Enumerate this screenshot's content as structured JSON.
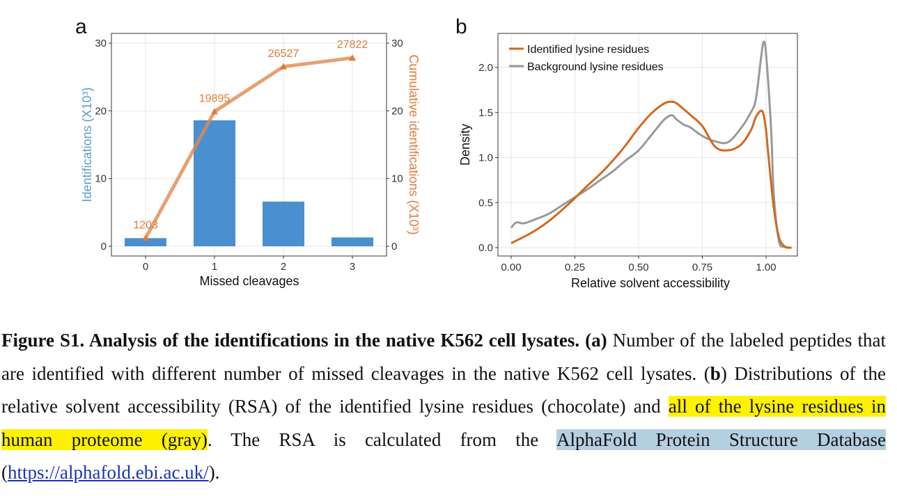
{
  "colors": {
    "bar": "#4a8fd0",
    "cumulative": "#e08a4c",
    "identified": "#d2691e",
    "background": "#999999",
    "left_axis_title": "#5b9bd5",
    "right_axis_title": "#e07b39"
  },
  "chart_data": [
    {
      "panel": "a",
      "type": "bar",
      "categories": [
        "0",
        "1",
        "2",
        "3"
      ],
      "series": [
        {
          "name": "Identifications",
          "axis": "left",
          "values": [
            1.2,
            18.6,
            6.6,
            1.3
          ]
        },
        {
          "name": "Cumulative identifications",
          "axis": "right",
          "type": "line",
          "values": [
            1.203,
            19.895,
            26.527,
            27.822
          ],
          "labels": [
            "1203",
            "19895",
            "26527",
            "27822"
          ]
        }
      ],
      "xlabel": "Missed cleavages",
      "ylabel_left": "Identifications (X10³)",
      "ylabel_right": "Cumulative identifications (X10³)",
      "ylim": [
        0,
        30
      ],
      "yticks": [
        "0",
        "10",
        "20",
        "30"
      ]
    },
    {
      "panel": "b",
      "type": "line",
      "xlabel": "Relative solvent accessibility",
      "ylabel": "Density",
      "xlim": [
        0,
        1.1
      ],
      "ylim": [
        0,
        2.3
      ],
      "xticks": [
        "0.00",
        "0.25",
        "0.50",
        "0.75",
        "1.00"
      ],
      "yticks": [
        "0.0",
        "0.5",
        "1.0",
        "1.5",
        "2.0"
      ],
      "legend_position": "top-left",
      "series": [
        {
          "name": "Identified lysine residues",
          "x": [
            0.0,
            0.05,
            0.1,
            0.15,
            0.2,
            0.25,
            0.3,
            0.35,
            0.4,
            0.45,
            0.5,
            0.55,
            0.6,
            0.63,
            0.65,
            0.68,
            0.7,
            0.75,
            0.8,
            0.85,
            0.9,
            0.94,
            0.96,
            0.98,
            0.99,
            1.0,
            1.01,
            1.03,
            1.05,
            1.07,
            1.09,
            1.1
          ],
          "y": [
            0.05,
            0.12,
            0.2,
            0.3,
            0.42,
            0.55,
            0.69,
            0.82,
            0.97,
            1.14,
            1.33,
            1.49,
            1.6,
            1.62,
            1.6,
            1.53,
            1.48,
            1.35,
            1.12,
            1.08,
            1.14,
            1.3,
            1.45,
            1.52,
            1.48,
            1.3,
            1.0,
            0.45,
            0.12,
            0.02,
            0.0,
            0.0
          ]
        },
        {
          "name": "Background lysine residues",
          "x": [
            0.0,
            0.02,
            0.05,
            0.1,
            0.15,
            0.2,
            0.25,
            0.3,
            0.35,
            0.4,
            0.45,
            0.5,
            0.55,
            0.6,
            0.63,
            0.65,
            0.68,
            0.7,
            0.75,
            0.8,
            0.85,
            0.9,
            0.94,
            0.96,
            0.98,
            0.99,
            1.0,
            1.02,
            1.03,
            1.05,
            1.07,
            1.1
          ],
          "y": [
            0.22,
            0.28,
            0.27,
            0.32,
            0.38,
            0.47,
            0.56,
            0.65,
            0.75,
            0.85,
            0.97,
            1.08,
            1.25,
            1.42,
            1.47,
            1.42,
            1.36,
            1.34,
            1.24,
            1.18,
            1.17,
            1.32,
            1.5,
            1.65,
            2.1,
            2.28,
            2.15,
            1.3,
            0.6,
            0.08,
            0.01,
            0.0
          ]
        }
      ]
    }
  ],
  "figure": {
    "panel_a_label": "a",
    "panel_b_label": "b"
  },
  "caption": {
    "bold_intro": "Figure S1. Analysis of the identifications in the native K562 cell lysates.",
    "part_a_label": "(a)",
    "part_a_text": " Number of the labeled peptides that are identified with different number of missed cleavages in the native K562 cell lysates. (",
    "part_b_label": "b",
    "part_b_text_1": ") Distributions of the relative solvent accessibility (RSA) of the identified lysine residues (chocolate) and ",
    "highlight_yellow": "all of the lysine residues in human proteome (gray)",
    "part_b_text_2": ". The RSA is calculated from the ",
    "highlight_blue": "AlphaFold Protein Structure Database",
    "paren_open": " (",
    "link_text": "https://alphafold.ebi.ac.uk/",
    "paren_close": ")."
  }
}
